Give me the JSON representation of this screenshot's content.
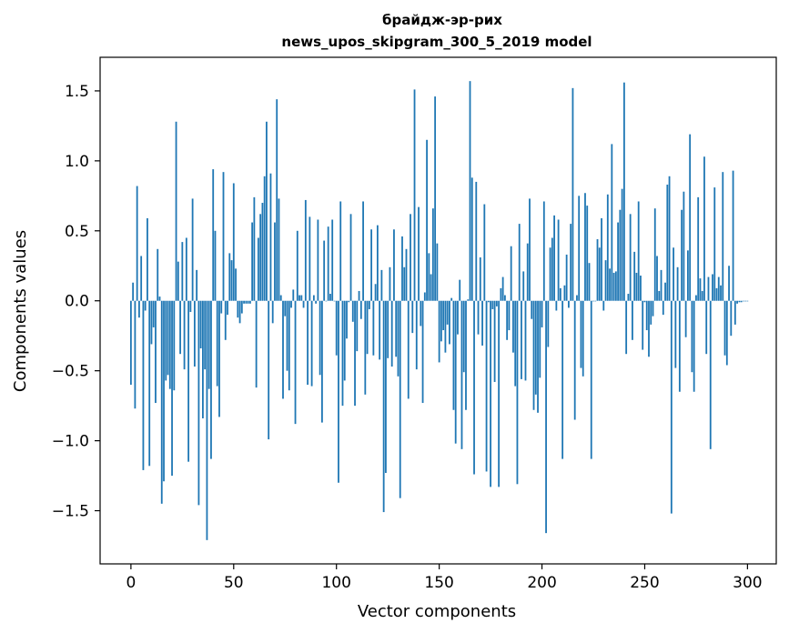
{
  "chart_data": {
    "type": "bar",
    "title": "брайдж-эр-рих",
    "subtitle": "news_upos_skipgram_300_5_2019 model",
    "xlabel": "Vector components",
    "ylabel": "Components values",
    "xlim": [
      -15,
      314
    ],
    "ylim": [
      -1.88,
      1.74
    ],
    "xticks": [
      "0",
      "50",
      "100",
      "150",
      "200",
      "250",
      "300"
    ],
    "yticks": [
      "−1.5",
      "−1.0",
      "−0.5",
      "0.0",
      "0.5",
      "1.0",
      "1.5"
    ],
    "grid": false,
    "bar_color": "#1f77b4",
    "series": [
      {
        "values": [
          -0.6,
          0.13,
          -0.77,
          0.82,
          -0.12,
          0.32,
          -1.21,
          -0.07,
          0.59,
          -1.18,
          -0.31,
          -0.19,
          -0.73,
          0.37,
          0.03,
          -1.45,
          -1.29,
          -0.57,
          -0.53,
          -0.63,
          -1.25,
          -0.64,
          1.28,
          0.28,
          -0.38,
          0.42,
          -0.49,
          0.45,
          -1.15,
          -0.08,
          0.73,
          -0.47,
          0.22,
          -1.46,
          -0.34,
          -0.84,
          -0.49,
          -1.71,
          -0.63,
          -1.13,
          0.94,
          0.5,
          -0.61,
          -0.83,
          -0.09,
          0.92,
          -0.28,
          -0.1,
          0.34,
          0.29,
          0.84,
          0.23,
          -0.12,
          -0.16,
          -0.09,
          -0.02,
          -0.02,
          -0.02,
          -0.02,
          0.56,
          0.74,
          -0.62,
          0.45,
          0.62,
          0.7,
          0.89,
          1.28,
          -0.99,
          0.91,
          -0.16,
          0.56,
          1.44,
          0.73,
          0.04,
          -0.7,
          -0.11,
          -0.5,
          -0.64,
          -0.05,
          0.08,
          -0.88,
          0.5,
          0.04,
          0.04,
          -0.05,
          0.72,
          -0.6,
          0.6,
          -0.61,
          0.04,
          -0.02,
          0.58,
          -0.53,
          -0.87,
          0.43,
          0.0,
          0.53,
          0.05,
          0.58,
          0.0,
          -0.39,
          -1.3,
          0.71,
          -0.75,
          -0.57,
          -0.27,
          -0.01,
          0.62,
          -0.15,
          -0.75,
          -0.36,
          0.07,
          -0.13,
          0.71,
          -0.67,
          -0.38,
          -0.06,
          0.51,
          -0.39,
          0.12,
          0.54,
          -0.42,
          0.22,
          -1.51,
          -1.23,
          -0.41,
          0.24,
          -0.47,
          0.51,
          -0.4,
          -0.54,
          -1.41,
          0.46,
          0.24,
          0.37,
          -0.7,
          0.62,
          -0.23,
          1.51,
          -0.49,
          0.67,
          -0.18,
          -0.73,
          0.06,
          1.15,
          0.34,
          0.19,
          0.66,
          1.46,
          0.41,
          -0.44,
          -0.29,
          -0.21,
          -0.37,
          -0.17,
          -0.31,
          0.02,
          -0.78,
          -1.02,
          -0.24,
          0.15,
          -1.06,
          -0.51,
          -0.78,
          0.01,
          1.57,
          0.88,
          -1.24,
          0.85,
          -0.24,
          0.31,
          -0.32,
          0.69,
          -1.22,
          -0.01,
          -1.33,
          -0.06,
          -0.58,
          -0.04,
          -1.33,
          0.09,
          0.17,
          0.04,
          -0.28,
          -0.21,
          0.39,
          -0.37,
          -0.61,
          -1.31,
          0.55,
          -0.56,
          0.21,
          -0.57,
          0.41,
          0.73,
          -0.13,
          -0.78,
          -0.67,
          -0.8,
          -0.55,
          -0.19,
          0.71,
          -1.66,
          -0.33,
          0.38,
          0.45,
          0.61,
          -0.07,
          0.58,
          0.09,
          -1.13,
          0.11,
          0.33,
          -0.05,
          0.55,
          1.52,
          -0.85,
          0.04,
          0.75,
          -0.48,
          -0.54,
          0.77,
          0.68,
          0.27,
          -1.13,
          0.0,
          0.0,
          0.44,
          0.38,
          0.59,
          -0.07,
          0.29,
          0.76,
          0.23,
          1.12,
          0.2,
          0.21,
          0.56,
          0.65,
          0.8,
          1.56,
          -0.38,
          0.05,
          0.62,
          -0.28,
          0.35,
          0.2,
          0.71,
          0.18,
          -0.35,
          -0.01,
          -0.21,
          -0.4,
          -0.17,
          -0.11,
          0.66,
          0.32,
          0.07,
          0.22,
          -0.1,
          0.13,
          0.83,
          0.89,
          -1.52,
          0.38,
          -0.48,
          0.24,
          -0.65,
          0.65,
          0.78,
          -0.26,
          0.36,
          1.19,
          -0.51,
          -0.65,
          0.04,
          0.74,
          0.16,
          0.07,
          1.03,
          -0.38,
          0.17,
          -1.06,
          0.19,
          0.81,
          0.09,
          0.17,
          0.11,
          0.92,
          -0.39,
          -0.46,
          0.25,
          -0.25,
          0.93,
          -0.17,
          -0.02,
          -0.01,
          -0.01,
          0.0,
          0.0,
          0.0
        ]
      }
    ]
  }
}
